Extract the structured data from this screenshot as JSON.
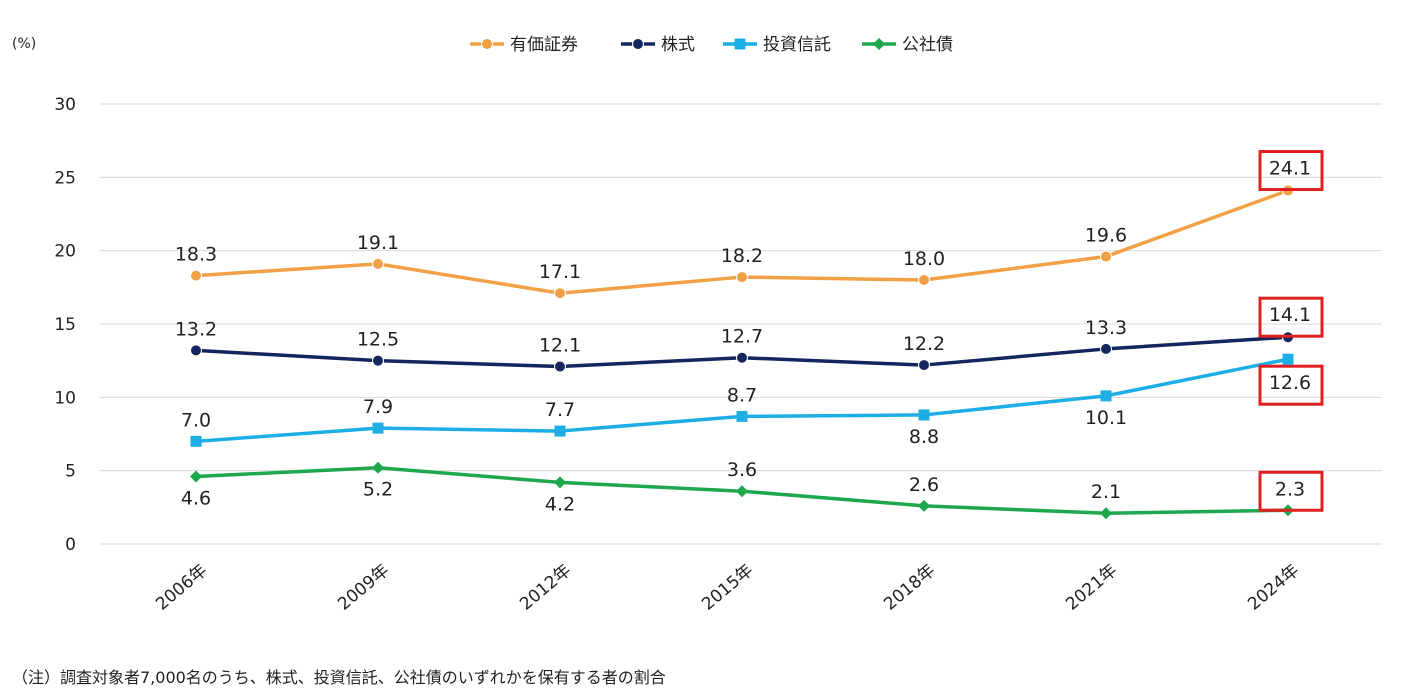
{
  "chart_data": {
    "type": "line",
    "unit_label": "(%)",
    "categories": [
      "2006年",
      "2009年",
      "2012年",
      "2015年",
      "2018年",
      "2021年",
      "2024年"
    ],
    "ylim": [
      0,
      30
    ],
    "yticks": [
      0,
      5,
      10,
      15,
      20,
      25,
      30
    ],
    "grid": true,
    "legend_position": "top-center",
    "series": [
      {
        "name": "有価証券",
        "color": "#F0A145",
        "marker": "circle",
        "values": [
          18.3,
          19.1,
          17.1,
          18.2,
          18.0,
          19.6,
          24.1
        ],
        "labels": [
          "18.3",
          "19.1",
          "17.1",
          "18.2",
          "18.0",
          "19.6",
          "24.1"
        ]
      },
      {
        "name": "株式",
        "color": "#13275E",
        "marker": "circle",
        "values": [
          13.2,
          12.5,
          12.1,
          12.7,
          12.2,
          13.3,
          14.1
        ],
        "labels": [
          "13.2",
          "12.5",
          "12.1",
          "12.7",
          "12.2",
          "13.3",
          "14.1"
        ]
      },
      {
        "name": "投資信託",
        "color": "#1CAEE5",
        "marker": "square",
        "values": [
          7.0,
          7.9,
          7.7,
          8.7,
          8.8,
          10.1,
          12.6
        ],
        "labels": [
          "7.0",
          "7.9",
          "7.7",
          "8.7",
          "8.8",
          "10.1",
          "12.6"
        ]
      },
      {
        "name": "公社債",
        "color": "#1DA84E",
        "marker": "diamond",
        "values": [
          4.6,
          5.2,
          4.2,
          3.6,
          2.6,
          2.1,
          2.3
        ],
        "labels": [
          "4.6",
          "5.2",
          "4.2",
          "3.6",
          "2.6",
          "2.1",
          "2.3"
        ]
      }
    ],
    "highlight_color": "#E02020"
  },
  "note": "（注）調査対象者7,000名のうち、株式、投資信託、公社債のいずれかを保有する者の割合"
}
